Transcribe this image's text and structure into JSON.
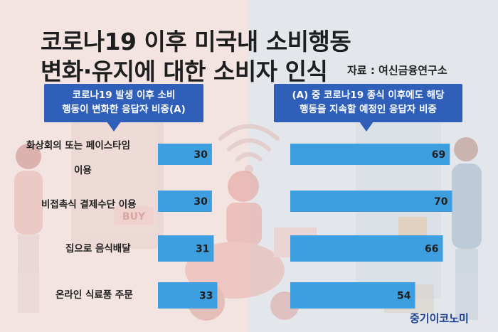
{
  "title": {
    "line1": "코로나19 이후 미국내 소비행동",
    "line2": "변화·유지에 대한 소비자 인식"
  },
  "source": "자료 : 여신금융연구소",
  "brand": "중기이코노미",
  "colors": {
    "bar": "#3d9fe0",
    "callout": "#2f5fb8",
    "background_left": "#f3e4e2",
    "background_right": "#e3e7ec"
  },
  "callouts": {
    "a": {
      "line1": "코로나19 발생 이후 소비",
      "line2": "행동이 변화한 응답자 비중(A)"
    },
    "b": {
      "line1": "(A) 중 코로나19 종식 이후에도 해당",
      "line2": "행동을 지속할 예정인 응답자 비중"
    }
  },
  "decor": {
    "buy_sign": "BUY"
  },
  "chart_data": [
    {
      "type": "bar",
      "orientation": "horizontal",
      "series_name": "코로나19 발생 이후 소비 행동이 변화한 응답자 비중(A)",
      "categories": [
        "화상회의 또는 페이스타임 이용",
        "비접촉식 결제수단 이용",
        "집으로 음식배달",
        "온라인 식료품 주문"
      ],
      "category_lines": [
        [
          "화상회의 또는 페이스타임",
          "이용"
        ],
        [
          "비접촉식 결제수단 이용"
        ],
        [
          "집으로 음식배달"
        ],
        [
          "온라인 식료품 주문"
        ]
      ],
      "values": [
        30,
        30,
        31,
        33
      ],
      "unit": "%"
    },
    {
      "type": "bar",
      "orientation": "horizontal",
      "series_name": "(A) 중 코로나19 종식 이후에도 해당 행동을 지속할 예정인 응답자 비중",
      "categories": [
        "화상회의 또는 페이스타임 이용",
        "비접촉식 결제수단 이용",
        "집으로 음식배달",
        "온라인 식료품 주문"
      ],
      "values": [
        69,
        70,
        66,
        54
      ],
      "unit": "%"
    }
  ]
}
